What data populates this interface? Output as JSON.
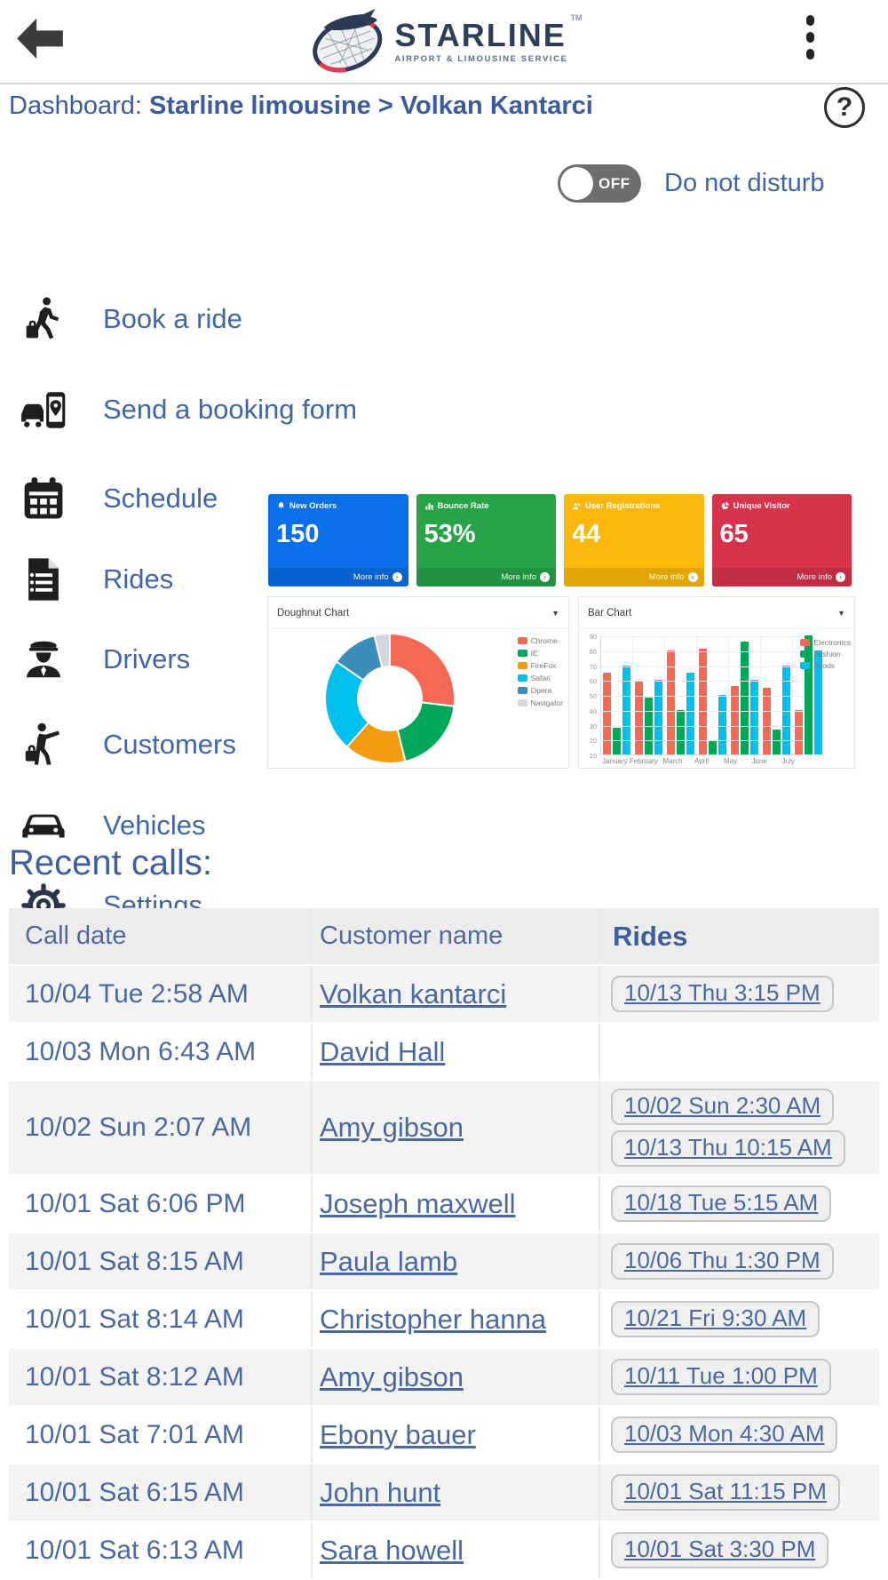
{
  "header": {
    "brand": {
      "name": "STARLINE",
      "tagline": "AIRPORT & LIMOUSINE SERVICE",
      "trademark": "TM"
    }
  },
  "breadcrumb": {
    "prefix": "Dashboard: ",
    "path": "Starline limousine > Volkan Kantarci",
    "help_icon": "help-icon"
  },
  "do_not_disturb": {
    "label": "Do not disturb",
    "state": "OFF"
  },
  "menu": {
    "items": [
      {
        "label": "Book a ride",
        "icon": "passenger-walking-icon"
      },
      {
        "label": "Send a booking form",
        "icon": "car-phone-pin-icon"
      },
      {
        "label": "Schedule",
        "icon": "calendar-icon"
      },
      {
        "label": "Rides",
        "icon": "document-list-icon"
      },
      {
        "label": "Drivers",
        "icon": "chauffeur-icon"
      },
      {
        "label": "Customers",
        "icon": "customer-luggage-icon"
      },
      {
        "label": "Vehicles",
        "icon": "car-front-icon"
      },
      {
        "label": "Settings",
        "icon": "gear-icon"
      }
    ]
  },
  "stats": [
    {
      "title": "New Orders",
      "value": "150",
      "more_info": "More info",
      "color": "#0a6fe8",
      "icon": "bell-icon"
    },
    {
      "title": "Bounce Rate",
      "value": "53%",
      "more_info": "More info",
      "color": "#27a348",
      "icon": "bar-chart-icon"
    },
    {
      "title": "User Registrations",
      "value": "44",
      "more_info": "More info",
      "color": "#fcb80a",
      "icon": "user-plus-icon"
    },
    {
      "title": "Unique Visitor",
      "value": "65",
      "more_info": "More info",
      "color": "#d7344c",
      "icon": "pie-chart-icon"
    }
  ],
  "chart_data": [
    {
      "type": "doughnut",
      "title": "Doughnut Chart",
      "labels": [
        "Chrome",
        "IE",
        "FireFox",
        "Safari",
        "Opera",
        "Navigator"
      ],
      "values": [
        700,
        500,
        400,
        600,
        300,
        100
      ],
      "colors": [
        "#f56954",
        "#00a65a",
        "#f39c12",
        "#00c0ef",
        "#3c8dbc",
        "#d2d6de"
      ],
      "legend_position": "right"
    },
    {
      "type": "bar",
      "title": "Bar Chart",
      "categories": [
        "January",
        "February",
        "March",
        "April",
        "May",
        "June",
        "July"
      ],
      "series": [
        {
          "name": "Electronics",
          "color": "#f56954",
          "values": [
            65,
            59,
            80,
            81,
            56,
            55,
            40
          ]
        },
        {
          "name": "Fashion",
          "color": "#00a65a",
          "values": [
            28,
            48,
            40,
            19,
            86,
            27,
            90
          ]
        },
        {
          "name": "Foods",
          "color": "#00c0ef",
          "values": [
            70,
            60,
            65,
            50,
            60,
            70,
            80
          ]
        }
      ],
      "ylim": [
        10,
        90
      ],
      "yticks": [
        90,
        80,
        70,
        60,
        50,
        40,
        30,
        20,
        10
      ],
      "grid": true,
      "legend_position": "top-right"
    }
  ],
  "recent_calls": {
    "title": "Recent calls:",
    "columns": [
      "Call date",
      "Customer name",
      "Rides"
    ],
    "rows": [
      {
        "date": "10/04 Tue 2:58 AM",
        "name": "Volkan kantarci",
        "rides": [
          "10/13 Thu 3:15 PM"
        ]
      },
      {
        "date": "10/03 Mon 6:43 AM",
        "name": "David Hall",
        "rides": []
      },
      {
        "date": "10/02 Sun 2:07 AM",
        "name": "Amy gibson",
        "rides": [
          "10/02 Sun 2:30 AM",
          "10/13 Thu 10:15 AM"
        ]
      },
      {
        "date": "10/01 Sat 6:06 PM",
        "name": "Joseph maxwell",
        "rides": [
          "10/18 Tue 5:15 AM"
        ]
      },
      {
        "date": "10/01 Sat 8:15 AM",
        "name": "Paula lamb",
        "rides": [
          "10/06 Thu 1:30 PM"
        ]
      },
      {
        "date": "10/01 Sat 8:14 AM",
        "name": "Christopher hanna",
        "rides": [
          "10/21 Fri 9:30 AM"
        ]
      },
      {
        "date": "10/01 Sat 8:12 AM",
        "name": "Amy gibson",
        "rides": [
          "10/11 Tue 1:00 PM"
        ]
      },
      {
        "date": "10/01 Sat 7:01 AM",
        "name": "Ebony bauer",
        "rides": [
          "10/03 Mon 4:30 AM"
        ]
      },
      {
        "date": "10/01 Sat 6:15 AM",
        "name": "John hunt",
        "rides": [
          "10/01 Sat 11:15 PM"
        ]
      },
      {
        "date": "10/01 Sat 6:13 AM",
        "name": "Sara howell",
        "rides": [
          "10/01 Sat 3:30 PM"
        ]
      }
    ]
  }
}
